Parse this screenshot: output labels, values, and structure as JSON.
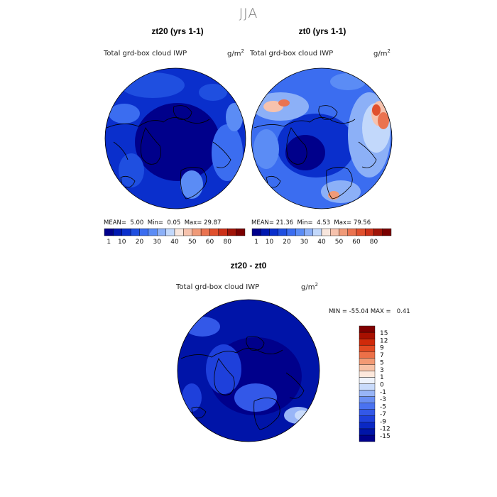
{
  "figure": {
    "season": "JJA"
  },
  "panels": [
    {
      "title": "zt20 (yrs 1-1)",
      "variable": "Total grd-box cloud IWP",
      "units_base": "g/m",
      "units_exp": "2",
      "mean_label": "MEAN=",
      "mean_value": "5.00",
      "min_label": "Min=",
      "min_value": "0.05",
      "max_label": "Max=",
      "max_value": "29.87"
    },
    {
      "title": "zt0 (yrs 1-1)",
      "variable": "Total grd-box cloud IWP",
      "units_base": "g/m",
      "units_exp": "2",
      "mean_label": "MEAN=",
      "mean_value": "21.36",
      "min_label": "Min=",
      "min_value": "4.53",
      "max_label": "Max=",
      "max_value": "79.56"
    },
    {
      "title": "zt20 - zt0",
      "variable": "Total grd-box cloud IWP",
      "units_base": "g/m",
      "units_exp": "2",
      "min_label": "MIN =",
      "min_value": "-55.04",
      "max_label": "MAX =",
      "max_value": "0.41"
    }
  ],
  "colorbar_abs": {
    "colors": [
      "#00008b",
      "#0018b0",
      "#0a2fcc",
      "#1f4fe0",
      "#3b6df0",
      "#5b8cf5",
      "#8cb0f7",
      "#c2d8fb",
      "#f8e6dd",
      "#f6c2ad",
      "#f09a78",
      "#ea7350",
      "#e0502d",
      "#cc3018",
      "#a01408",
      "#7a0000"
    ],
    "tick_labels": [
      "1",
      "10",
      "20",
      "30",
      "40",
      "50",
      "60",
      "80"
    ]
  },
  "colorbar_diff": {
    "colors": [
      "#00008b",
      "#0014a8",
      "#0a28c4",
      "#1e40db",
      "#3358e8",
      "#4a72f0",
      "#6a8ff3",
      "#98b5f7",
      "#c9dbfb",
      "#eef3fc",
      "#fde8dc",
      "#f7c2a6",
      "#f29a74",
      "#ec7048",
      "#e34a22",
      "#d02a0a",
      "#a81000",
      "#800000"
    ],
    "tick_labels": [
      "15",
      "12",
      "9",
      "7",
      "5",
      "3",
      "1",
      "0",
      "-1",
      "-3",
      "-5",
      "-7",
      "-9",
      "-12",
      "-15"
    ]
  }
}
